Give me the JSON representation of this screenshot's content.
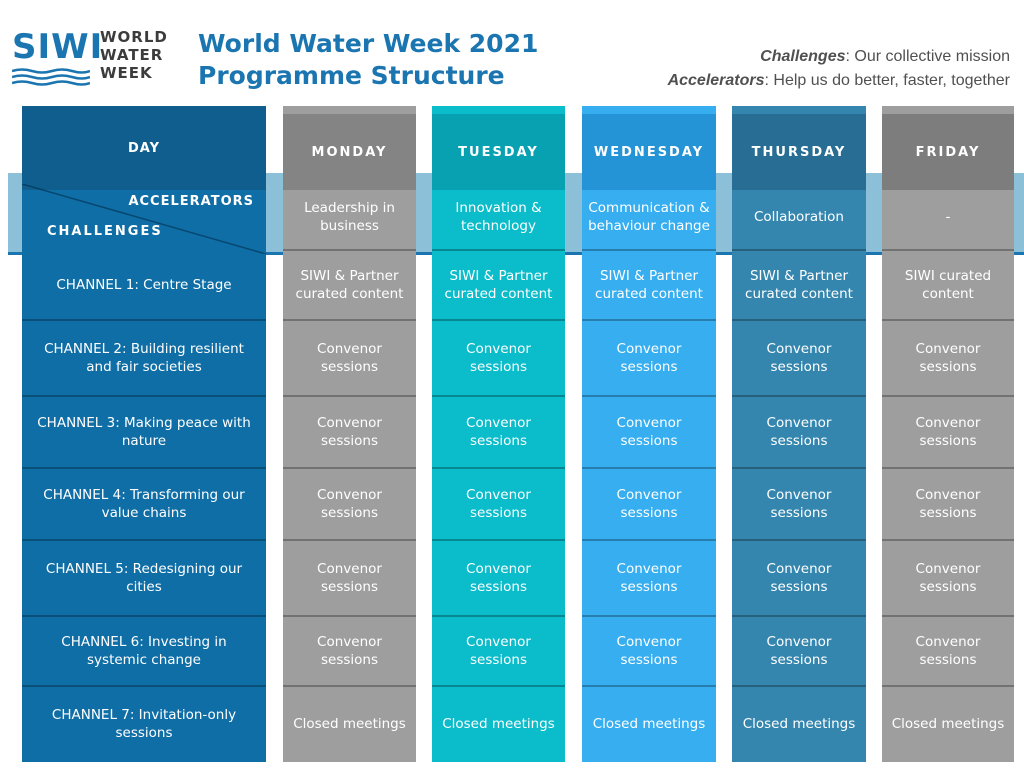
{
  "logo": {
    "mark": "SIWI",
    "words": [
      "WORLD",
      "WATER",
      "WEEK"
    ]
  },
  "title": {
    "line1": "World Water Week 2021",
    "line2": "Programme Structure"
  },
  "tagline": {
    "challenges_label": "Challenges",
    "challenges_text": ": Our collective mission",
    "accelerators_label": "Accelerators",
    "accelerators_text": ": Help us do better, faster, together"
  },
  "day_column": {
    "header": "DAY",
    "accelerators_label": "ACCELERATORS",
    "challenges_label": "CHALLENGES",
    "channels": [
      "CHANNEL 1: Centre Stage",
      "CHANNEL 2: Building resilient and fair societies",
      "CHANNEL 3: Making peace with nature",
      "CHANNEL 4: Transforming our value chains",
      "CHANNEL 5: Redesigning our cities",
      "CHANNEL 6: Investing in systemic change",
      "CHANNEL 7: Invitation-only sessions"
    ]
  },
  "days": [
    {
      "name": "MONDAY",
      "accelerator": "Leadership in business",
      "sessions": [
        "SIWI & Partner curated content",
        "Convenor sessions",
        "Convenor sessions",
        "Convenor sessions",
        "Convenor sessions",
        "Convenor sessions",
        "Closed meetings"
      ]
    },
    {
      "name": "TUESDAY",
      "accelerator": "Innovation & technology",
      "sessions": [
        "SIWI & Partner curated content",
        "Convenor sessions",
        "Convenor sessions",
        "Convenor sessions",
        "Convenor sessions",
        "Convenor sessions",
        "Closed meetings"
      ]
    },
    {
      "name": "WEDNESDAY",
      "accelerator": "Communication & behaviour change",
      "sessions": [
        "SIWI & Partner curated content",
        "Convenor sessions",
        "Convenor sessions",
        "Convenor sessions",
        "Convenor sessions",
        "Convenor sessions",
        "Closed meetings"
      ]
    },
    {
      "name": "THURSDAY",
      "accelerator": "Collaboration",
      "sessions": [
        "SIWI & Partner curated content",
        "Convenor sessions",
        "Convenor sessions",
        "Convenor sessions",
        "Convenor sessions",
        "Convenor sessions",
        "Closed meetings"
      ]
    },
    {
      "name": "FRIDAY",
      "accelerator": "-",
      "sessions": [
        "SIWI curated content",
        "Convenor sessions",
        "Convenor sessions",
        "Convenor sessions",
        "Convenor sessions",
        "Convenor sessions",
        "Closed meetings"
      ]
    }
  ],
  "colors": {
    "brand_blue": "#1b75b0",
    "day": "#0f6ea6",
    "monday": "#9e9e9e",
    "tuesday": "#0bbcca",
    "wednesday": "#36aef0",
    "thursday": "#3586ae",
    "friday": "#9e9e9e"
  }
}
